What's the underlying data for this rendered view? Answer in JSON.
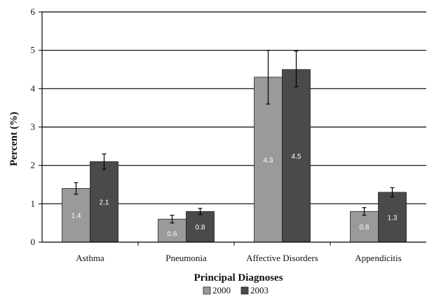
{
  "chart_data": {
    "type": "bar",
    "categories": [
      "Asthma",
      "Pneumonia",
      "Affective Disorders",
      "Appendicitis"
    ],
    "series": [
      {
        "name": "2000",
        "values": [
          1.4,
          0.6,
          4.3,
          0.8
        ],
        "error_low": [
          1.25,
          0.5,
          3.6,
          0.7
        ],
        "error_high": [
          1.55,
          0.7,
          5.0,
          0.9
        ],
        "color": "#9a9a9a"
      },
      {
        "name": "2003",
        "values": [
          2.1,
          0.8,
          4.5,
          1.3
        ],
        "error_low": [
          1.9,
          0.72,
          4.05,
          1.18
        ],
        "error_high": [
          2.3,
          0.88,
          4.98,
          1.42
        ],
        "color": "#4a4a4a"
      }
    ],
    "data_labels": [
      [
        "1.4",
        "0.6",
        "4.3",
        "0.8"
      ],
      [
        "2.1",
        "0.8",
        "4.5",
        "1.3"
      ]
    ],
    "yticks": [
      "0",
      "1",
      "2",
      "3",
      "4",
      "5",
      "6"
    ],
    "ylim": [
      0,
      6
    ],
    "ylabel": "Percent (%)",
    "xlabel": "Principal Diagnoses",
    "grid": true,
    "legend_position": "bottom"
  }
}
